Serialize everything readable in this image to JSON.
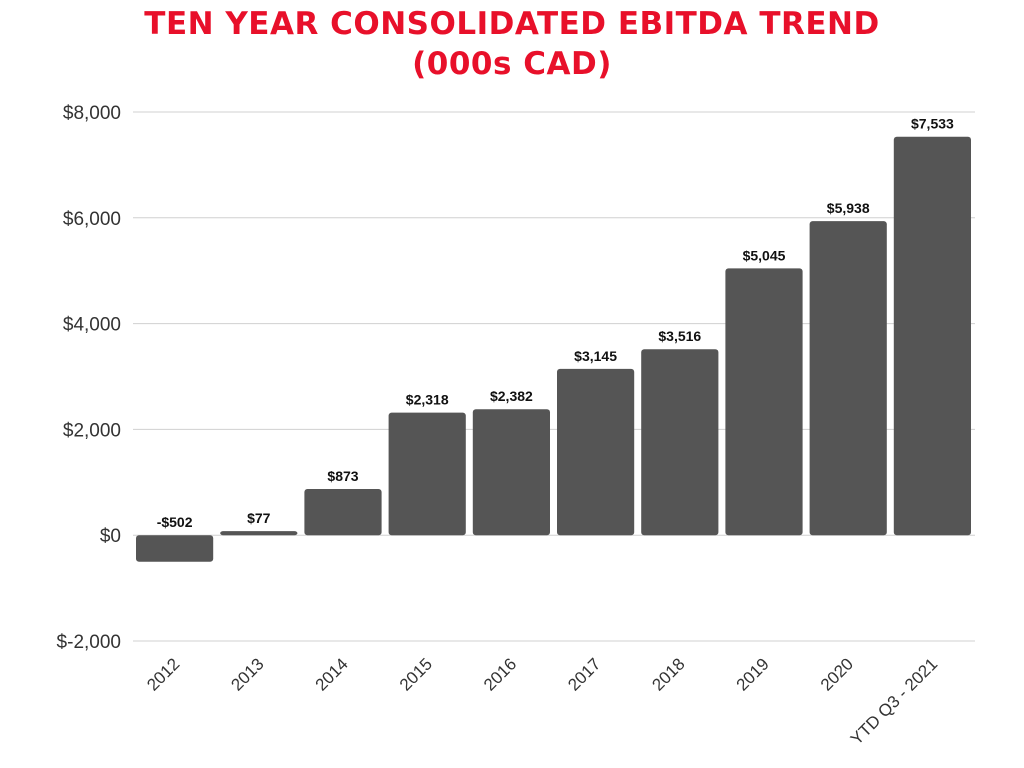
{
  "chart_data": {
    "type": "bar",
    "title": "TEN YEAR CONSOLIDATED EBITDA TREND",
    "subtitle": "(000s CAD)",
    "categories": [
      "2012",
      "2013",
      "2014",
      "2015",
      "2016",
      "2017",
      "2018",
      "2019",
      "2020",
      "YTD Q3 - 2021"
    ],
    "values": [
      -502,
      77,
      873,
      2318,
      2382,
      3145,
      3516,
      5045,
      5938,
      7533
    ],
    "data_labels": [
      "-$502",
      "$77",
      "$873",
      "$2,318",
      "$2,382",
      "$3,145",
      "$3,516",
      "$5,045",
      "$5,938",
      "$7,533"
    ],
    "y_ticks": [
      -2000,
      0,
      2000,
      4000,
      6000,
      8000
    ],
    "y_tick_labels": [
      "$-2,000",
      "$0",
      "$2,000",
      "$4,000",
      "$6,000",
      "$8,000"
    ],
    "ylim": [
      -2000,
      8000
    ],
    "grid": true,
    "legend": "none",
    "bar_color": "#555555",
    "title_color": "#e8102a",
    "xlabel": "",
    "ylabel": ""
  }
}
